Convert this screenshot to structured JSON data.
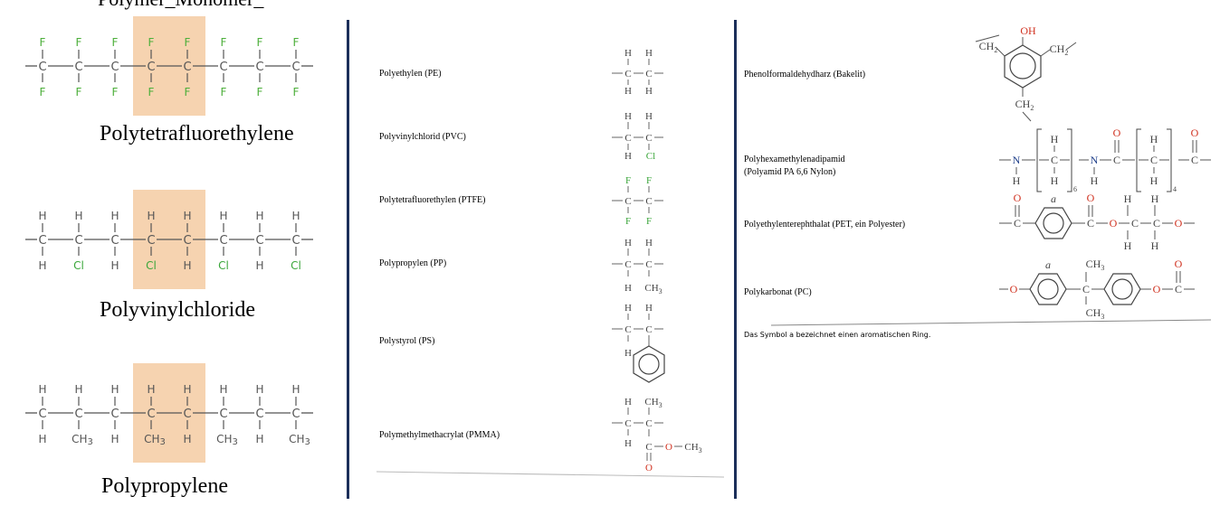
{
  "left_panel": {
    "top_cutoff_text": "Polymer_Monomer_",
    "polymers": [
      {
        "name": "Polytetrafluorethylene",
        "top_atoms": [
          "F",
          "F",
          "F",
          "F",
          "F",
          "F",
          "F",
          "F"
        ],
        "bottom_atoms": [
          "F",
          "F",
          "F",
          "F",
          "F",
          "F",
          "F",
          "F"
        ]
      },
      {
        "name": "Polyvinylchloride",
        "top_atoms": [
          "H",
          "H",
          "H",
          "H",
          "H",
          "H",
          "H",
          "H"
        ],
        "bottom_atoms": [
          "H",
          "Cl",
          "H",
          "Cl",
          "H",
          "Cl",
          "H",
          "Cl"
        ]
      },
      {
        "name": "Polypropylene",
        "top_atoms": [
          "H",
          "H",
          "H",
          "H",
          "H",
          "H",
          "H",
          "H"
        ],
        "bottom_atoms": [
          "H",
          "CH3",
          "H",
          "CH3",
          "H",
          "CH3",
          "H",
          "CH3"
        ]
      }
    ],
    "backbone_atom": "C"
  },
  "middle_panel": {
    "rows": [
      {
        "name": "Polyethylen (PE)"
      },
      {
        "name": "Polyvinylchlorid (PVC)"
      },
      {
        "name": "Polytetrafluorethylen (PTFE)"
      },
      {
        "name": "Polypropylen (PP)"
      },
      {
        "name": "Polystyrol (PS)"
      },
      {
        "name": "Polymethylmethacrylat (PMMA)"
      }
    ]
  },
  "right_panel": {
    "rows": [
      {
        "name": "Phenolformaldehydharz (Bakelit)"
      },
      {
        "name": "Polyhexamethylenadipamid",
        "name2": "(Polyamid PA 6,6 Nylon)"
      },
      {
        "name": "Polyethylenterephthalat (PET, ein Polyester)"
      },
      {
        "name": "Polykarbonat (PC)"
      }
    ],
    "footnote": "Das Symbol a bezeichnet einen aromatischen Ring."
  },
  "colors": {
    "fluorine": "#4caf3a",
    "chlorine": "#3aa63a",
    "oxygen": "#d0301e",
    "nitrogen": "#1f3f8a",
    "highlight": "#f6d3b0",
    "divider": "#1c2f5a",
    "bond": "#333333"
  }
}
